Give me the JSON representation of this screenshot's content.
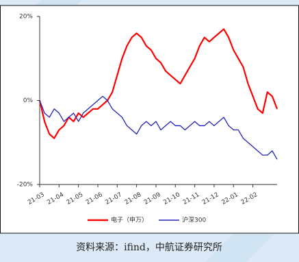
{
  "chart_data": {
    "type": "line",
    "categories": [
      "21-03",
      null,
      null,
      null,
      "21-04",
      null,
      null,
      null,
      "21-05",
      null,
      null,
      null,
      "21-06",
      null,
      null,
      null,
      "21-07",
      null,
      null,
      null,
      "21-08",
      null,
      null,
      null,
      "21-09",
      null,
      null,
      null,
      "21-10",
      null,
      null,
      null,
      "21-11",
      null,
      null,
      null,
      "21-12",
      null,
      null,
      null,
      "22-01",
      null,
      null,
      null,
      "22-02",
      null,
      null,
      null,
      null,
      null
    ],
    "series": [
      {
        "name": "电子（申万）",
        "color": "#ff0000",
        "values": [
          0,
          -5,
          -8,
          -9,
          -7,
          -6,
          -4,
          -5,
          -3,
          -4,
          -3,
          -2,
          -2,
          -1,
          0,
          2,
          6,
          10,
          13,
          15,
          16,
          15,
          13,
          12,
          10,
          9,
          7,
          6,
          5,
          4,
          6,
          8,
          10,
          13,
          15,
          14,
          15,
          16,
          17,
          15,
          12,
          10,
          8,
          4,
          1,
          -2,
          -3,
          2,
          1,
          -2
        ]
      },
      {
        "name": "沪深300",
        "color": "#2323bb",
        "values": [
          0,
          -3,
          -4,
          -2,
          -3,
          -5,
          -4,
          -3,
          -5,
          -3,
          -2,
          -1,
          0,
          1,
          0,
          -2,
          -3,
          -4,
          -6,
          -7,
          -8,
          -6,
          -5,
          -6,
          -5,
          -7,
          -6,
          -5,
          -6,
          -6,
          -7,
          -6,
          -5,
          -6,
          -6,
          -5,
          -6,
          -5,
          -4,
          -6,
          -7,
          -7,
          -9,
          -10,
          -11,
          -12,
          -13,
          -13,
          -12,
          -14
        ]
      }
    ],
    "ylim": [
      -20,
      20
    ],
    "yticks": [
      {
        "value": -20,
        "label": "-20%"
      },
      {
        "value": 0,
        "label": "0%"
      },
      {
        "value": 20,
        "label": "20%"
      }
    ]
  },
  "source": "资料来源：ifind，中航证券研究所"
}
